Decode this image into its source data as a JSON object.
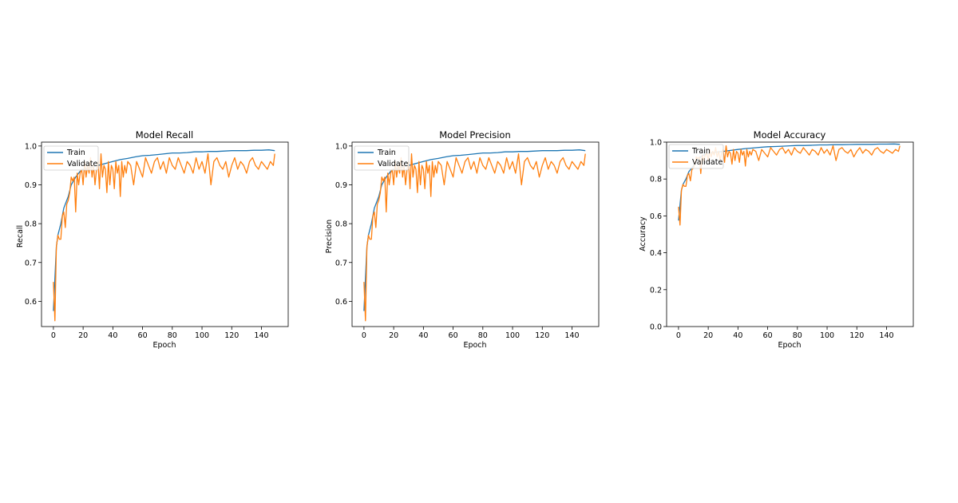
{
  "colors": {
    "train": "#1f77b4",
    "validate": "#ff7f0e",
    "axis": "#000000",
    "legend_border": "#cccccc"
  },
  "chart_data": [
    {
      "type": "line",
      "title": "Model Recall",
      "xlabel": "Epoch",
      "ylabel": "Recall",
      "xlim": [
        -8,
        158
      ],
      "ylim": [
        0.535,
        1.01
      ],
      "xticks": [
        0,
        20,
        40,
        60,
        80,
        100,
        120,
        140
      ],
      "yticks": [
        0.6,
        0.7,
        0.8,
        0.9,
        1.0
      ],
      "ytick_labels": [
        "0.6",
        "0.7",
        "0.8",
        "0.9",
        "1.0"
      ],
      "legend": {
        "position": "upper-left",
        "entries": [
          "Train",
          "Validate"
        ]
      },
      "series": [
        {
          "name": "Train",
          "color_key": "train",
          "x": [
            0,
            1,
            2,
            3,
            5,
            7,
            10,
            12,
            15,
            18,
            20,
            25,
            30,
            35,
            40,
            45,
            50,
            55,
            60,
            65,
            70,
            75,
            80,
            85,
            90,
            95,
            100,
            105,
            110,
            115,
            120,
            125,
            130,
            135,
            140,
            145,
            149
          ],
          "y": [
            0.575,
            0.66,
            0.74,
            0.77,
            0.8,
            0.84,
            0.87,
            0.9,
            0.92,
            0.935,
            0.94,
            0.945,
            0.95,
            0.955,
            0.96,
            0.965,
            0.968,
            0.972,
            0.975,
            0.976,
            0.978,
            0.98,
            0.982,
            0.982,
            0.983,
            0.985,
            0.985,
            0.986,
            0.986,
            0.987,
            0.988,
            0.988,
            0.988,
            0.989,
            0.989,
            0.99,
            0.988
          ]
        },
        {
          "name": "Validate",
          "color_key": "validate",
          "x": [
            0,
            1,
            2,
            3,
            4,
            5,
            6,
            7,
            8,
            9,
            10,
            11,
            12,
            13,
            14,
            15,
            16,
            17,
            18,
            19,
            20,
            21,
            22,
            23,
            24,
            25,
            26,
            27,
            28,
            29,
            30,
            31,
            32,
            33,
            34,
            35,
            36,
            37,
            38,
            39,
            40,
            41,
            42,
            43,
            44,
            45,
            46,
            47,
            48,
            49,
            50,
            52,
            54,
            56,
            58,
            60,
            62,
            64,
            66,
            68,
            70,
            72,
            74,
            76,
            78,
            80,
            82,
            84,
            86,
            88,
            90,
            92,
            94,
            96,
            98,
            100,
            102,
            104,
            106,
            108,
            110,
            112,
            114,
            116,
            118,
            120,
            122,
            124,
            126,
            128,
            130,
            132,
            134,
            136,
            138,
            140,
            142,
            144,
            146,
            148,
            149
          ],
          "y": [
            0.65,
            0.55,
            0.74,
            0.77,
            0.76,
            0.76,
            0.82,
            0.83,
            0.79,
            0.85,
            0.86,
            0.88,
            0.92,
            0.91,
            0.92,
            0.83,
            0.93,
            0.9,
            0.93,
            0.94,
            0.9,
            0.96,
            0.92,
            0.95,
            0.93,
            0.97,
            0.92,
            0.95,
            0.9,
            0.94,
            0.96,
            0.89,
            0.98,
            0.92,
            0.95,
            0.94,
            0.88,
            0.96,
            0.9,
            0.95,
            0.94,
            0.89,
            0.96,
            0.93,
            0.95,
            0.87,
            0.96,
            0.92,
            0.95,
            0.93,
            0.96,
            0.95,
            0.9,
            0.96,
            0.94,
            0.92,
            0.97,
            0.95,
            0.93,
            0.96,
            0.97,
            0.94,
            0.96,
            0.93,
            0.97,
            0.95,
            0.94,
            0.97,
            0.95,
            0.93,
            0.96,
            0.95,
            0.93,
            0.97,
            0.94,
            0.96,
            0.93,
            0.98,
            0.9,
            0.96,
            0.97,
            0.95,
            0.94,
            0.96,
            0.92,
            0.95,
            0.97,
            0.94,
            0.96,
            0.95,
            0.93,
            0.96,
            0.97,
            0.95,
            0.94,
            0.96,
            0.95,
            0.94,
            0.96,
            0.95,
            0.98
          ]
        }
      ]
    },
    {
      "type": "line",
      "title": "Model Precision",
      "xlabel": "Epoch",
      "ylabel": "Precision",
      "xlim": [
        -8,
        158
      ],
      "ylim": [
        0.535,
        1.01
      ],
      "xticks": [
        0,
        20,
        40,
        60,
        80,
        100,
        120,
        140
      ],
      "yticks": [
        0.6,
        0.7,
        0.8,
        0.9,
        1.0
      ],
      "ytick_labels": [
        "0.6",
        "0.7",
        "0.8",
        "0.9",
        "1.0"
      ],
      "legend": {
        "position": "upper-left",
        "entries": [
          "Train",
          "Validate"
        ]
      },
      "series": [
        {
          "name": "Train",
          "color_key": "train",
          "x": [
            0,
            1,
            2,
            3,
            5,
            7,
            10,
            12,
            15,
            18,
            20,
            25,
            30,
            35,
            40,
            45,
            50,
            55,
            60,
            65,
            70,
            75,
            80,
            85,
            90,
            95,
            100,
            105,
            110,
            115,
            120,
            125,
            130,
            135,
            140,
            145,
            149
          ],
          "y": [
            0.575,
            0.66,
            0.74,
            0.77,
            0.8,
            0.84,
            0.87,
            0.9,
            0.92,
            0.935,
            0.94,
            0.945,
            0.95,
            0.955,
            0.96,
            0.965,
            0.968,
            0.972,
            0.975,
            0.976,
            0.978,
            0.98,
            0.982,
            0.982,
            0.983,
            0.985,
            0.985,
            0.986,
            0.986,
            0.987,
            0.988,
            0.988,
            0.988,
            0.989,
            0.989,
            0.99,
            0.988
          ]
        },
        {
          "name": "Validate",
          "color_key": "validate",
          "x": [
            0,
            1,
            2,
            3,
            4,
            5,
            6,
            7,
            8,
            9,
            10,
            11,
            12,
            13,
            14,
            15,
            16,
            17,
            18,
            19,
            20,
            21,
            22,
            23,
            24,
            25,
            26,
            27,
            28,
            29,
            30,
            31,
            32,
            33,
            34,
            35,
            36,
            37,
            38,
            39,
            40,
            41,
            42,
            43,
            44,
            45,
            46,
            47,
            48,
            49,
            50,
            52,
            54,
            56,
            58,
            60,
            62,
            64,
            66,
            68,
            70,
            72,
            74,
            76,
            78,
            80,
            82,
            84,
            86,
            88,
            90,
            92,
            94,
            96,
            98,
            100,
            102,
            104,
            106,
            108,
            110,
            112,
            114,
            116,
            118,
            120,
            122,
            124,
            126,
            128,
            130,
            132,
            134,
            136,
            138,
            140,
            142,
            144,
            146,
            148,
            149
          ],
          "y": [
            0.65,
            0.55,
            0.74,
            0.77,
            0.76,
            0.76,
            0.82,
            0.83,
            0.79,
            0.85,
            0.86,
            0.88,
            0.92,
            0.91,
            0.92,
            0.83,
            0.93,
            0.9,
            0.93,
            0.94,
            0.9,
            0.96,
            0.92,
            0.95,
            0.93,
            0.97,
            0.92,
            0.95,
            0.9,
            0.94,
            0.96,
            0.89,
            0.98,
            0.92,
            0.95,
            0.94,
            0.88,
            0.96,
            0.9,
            0.95,
            0.94,
            0.89,
            0.96,
            0.93,
            0.95,
            0.87,
            0.96,
            0.92,
            0.95,
            0.93,
            0.96,
            0.95,
            0.9,
            0.96,
            0.94,
            0.92,
            0.97,
            0.95,
            0.93,
            0.96,
            0.97,
            0.94,
            0.96,
            0.93,
            0.97,
            0.95,
            0.94,
            0.97,
            0.95,
            0.93,
            0.96,
            0.95,
            0.93,
            0.97,
            0.94,
            0.96,
            0.93,
            0.98,
            0.9,
            0.96,
            0.97,
            0.95,
            0.94,
            0.96,
            0.92,
            0.95,
            0.97,
            0.94,
            0.96,
            0.95,
            0.93,
            0.96,
            0.97,
            0.95,
            0.94,
            0.96,
            0.95,
            0.94,
            0.96,
            0.95,
            0.98
          ]
        }
      ]
    },
    {
      "type": "line",
      "title": "Model Accuracy",
      "xlabel": "Epoch",
      "ylabel": "Accuracy",
      "xlim": [
        -8,
        158
      ],
      "ylim": [
        0.0,
        1.0
      ],
      "xticks": [
        0,
        20,
        40,
        60,
        80,
        100,
        120,
        140
      ],
      "yticks": [
        0.0,
        0.2,
        0.4,
        0.6,
        0.8,
        1.0
      ],
      "ytick_labels": [
        "0.0",
        "0.2",
        "0.4",
        "0.6",
        "0.8",
        "1.0"
      ],
      "legend": {
        "position": "upper-left",
        "entries": [
          "Train",
          "Validate"
        ]
      },
      "series": [
        {
          "name": "Train",
          "color_key": "train",
          "x": [
            0,
            1,
            2,
            3,
            5,
            7,
            10,
            12,
            15,
            18,
            20,
            25,
            30,
            35,
            40,
            45,
            50,
            55,
            60,
            65,
            70,
            75,
            80,
            85,
            90,
            95,
            100,
            105,
            110,
            115,
            120,
            125,
            130,
            135,
            140,
            145,
            149
          ],
          "y": [
            0.575,
            0.66,
            0.74,
            0.77,
            0.8,
            0.84,
            0.87,
            0.9,
            0.92,
            0.935,
            0.94,
            0.945,
            0.95,
            0.955,
            0.96,
            0.965,
            0.968,
            0.972,
            0.975,
            0.976,
            0.978,
            0.98,
            0.982,
            0.982,
            0.983,
            0.985,
            0.985,
            0.986,
            0.986,
            0.987,
            0.988,
            0.988,
            0.988,
            0.989,
            0.989,
            0.99,
            0.988
          ]
        },
        {
          "name": "Validate",
          "color_key": "validate",
          "x": [
            0,
            1,
            2,
            3,
            4,
            5,
            6,
            7,
            8,
            9,
            10,
            11,
            12,
            13,
            14,
            15,
            16,
            17,
            18,
            19,
            20,
            21,
            22,
            23,
            24,
            25,
            26,
            27,
            28,
            29,
            30,
            31,
            32,
            33,
            34,
            35,
            36,
            37,
            38,
            39,
            40,
            41,
            42,
            43,
            44,
            45,
            46,
            47,
            48,
            49,
            50,
            52,
            54,
            56,
            58,
            60,
            62,
            64,
            66,
            68,
            70,
            72,
            74,
            76,
            78,
            80,
            82,
            84,
            86,
            88,
            90,
            92,
            94,
            96,
            98,
            100,
            102,
            104,
            106,
            108,
            110,
            112,
            114,
            116,
            118,
            120,
            122,
            124,
            126,
            128,
            130,
            132,
            134,
            136,
            138,
            140,
            142,
            144,
            146,
            148,
            149
          ],
          "y": [
            0.65,
            0.55,
            0.74,
            0.77,
            0.76,
            0.76,
            0.82,
            0.83,
            0.79,
            0.85,
            0.86,
            0.88,
            0.92,
            0.91,
            0.92,
            0.83,
            0.93,
            0.9,
            0.93,
            0.94,
            0.9,
            0.96,
            0.92,
            0.95,
            0.93,
            0.97,
            0.92,
            0.95,
            0.9,
            0.94,
            0.96,
            0.89,
            0.98,
            0.92,
            0.95,
            0.94,
            0.88,
            0.96,
            0.9,
            0.95,
            0.94,
            0.89,
            0.96,
            0.93,
            0.95,
            0.87,
            0.96,
            0.92,
            0.95,
            0.93,
            0.96,
            0.95,
            0.9,
            0.96,
            0.94,
            0.92,
            0.97,
            0.95,
            0.93,
            0.96,
            0.97,
            0.94,
            0.96,
            0.93,
            0.97,
            0.95,
            0.94,
            0.97,
            0.95,
            0.93,
            0.96,
            0.95,
            0.93,
            0.97,
            0.94,
            0.96,
            0.93,
            0.98,
            0.9,
            0.96,
            0.97,
            0.95,
            0.94,
            0.96,
            0.92,
            0.95,
            0.97,
            0.94,
            0.96,
            0.95,
            0.93,
            0.96,
            0.97,
            0.95,
            0.94,
            0.96,
            0.95,
            0.94,
            0.96,
            0.95,
            0.98
          ]
        }
      ]
    }
  ]
}
